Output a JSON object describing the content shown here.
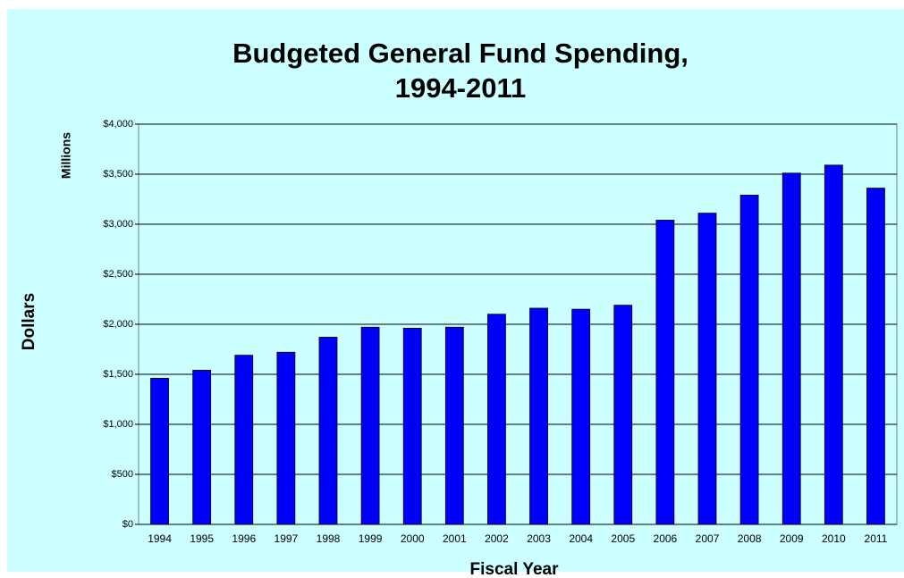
{
  "chart_data": {
    "type": "bar",
    "title": "Budgeted General Fund Spending,",
    "subtitle": "1994-2011",
    "y_unit_label": "Millions",
    "y_axis_label": "Dollars",
    "x_axis_label": "Fiscal Year",
    "categories": [
      "1994",
      "1995",
      "1996",
      "1997",
      "1998",
      "1999",
      "2000",
      "2001",
      "2002",
      "2003",
      "2004",
      "2005",
      "2006",
      "2007",
      "2008",
      "2009",
      "2010",
      "2011"
    ],
    "values": [
      1460,
      1540,
      1690,
      1720,
      1870,
      1970,
      1960,
      1970,
      2100,
      2160,
      2150,
      2190,
      3040,
      3110,
      3290,
      3510,
      3590,
      3360
    ],
    "color": "#0000ff",
    "ylim": [
      0,
      4000
    ],
    "yticks": [
      {
        "value": 0,
        "label": "$0"
      },
      {
        "value": 500,
        "label": "$500"
      },
      {
        "value": 1000,
        "label": "$1,000"
      },
      {
        "value": 1500,
        "label": "$1,500"
      },
      {
        "value": 2000,
        "label": "$2,000"
      },
      {
        "value": 2500,
        "label": "$2,500"
      },
      {
        "value": 3000,
        "label": "$3,000"
      },
      {
        "value": 3500,
        "label": "$3,500"
      },
      {
        "value": 4000,
        "label": "$4,000"
      }
    ],
    "grid": true
  }
}
